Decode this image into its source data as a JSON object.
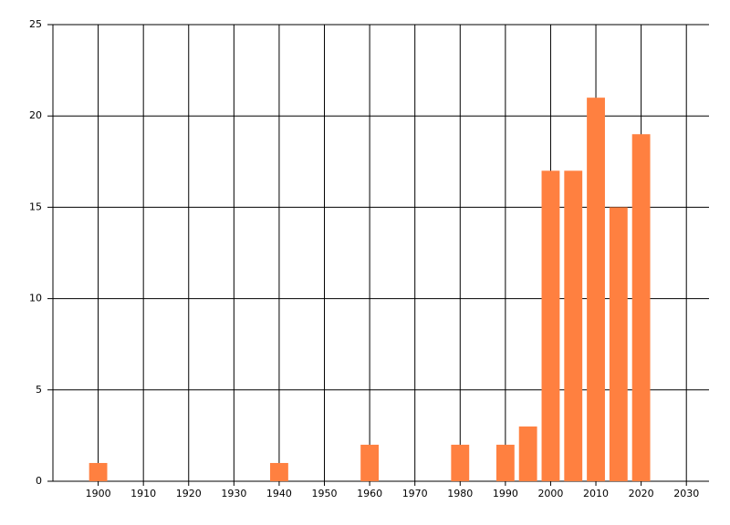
{
  "chart_data": {
    "type": "bar",
    "x": [
      1900,
      1940,
      1960,
      1980,
      1990,
      1995,
      2000,
      2005,
      2010,
      2015,
      2020
    ],
    "values": [
      1,
      1,
      2,
      2,
      2,
      3,
      17,
      17,
      21,
      15,
      19
    ],
    "color": "#ff8040",
    "xlim": [
      1890,
      2035
    ],
    "xticks": [
      1900,
      1910,
      1920,
      1930,
      1940,
      1950,
      1960,
      1970,
      1980,
      1990,
      2000,
      2010,
      2020,
      2030
    ],
    "ylim": [
      0,
      25
    ],
    "yticks": [
      0,
      5,
      10,
      15,
      20,
      25
    ],
    "grid": true
  }
}
